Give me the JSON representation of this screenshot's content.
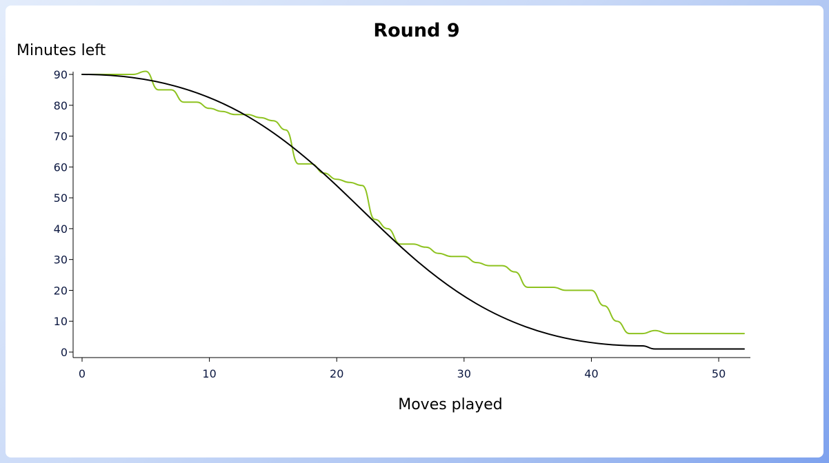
{
  "chart_data": {
    "type": "line",
    "title": "Round 9",
    "xlabel": "Moves played",
    "ylabel": "Minutes left",
    "xlim": [
      0,
      52
    ],
    "ylim": [
      0,
      90
    ],
    "x_ticks": [
      0,
      10,
      20,
      30,
      40,
      50
    ],
    "y_ticks": [
      0,
      10,
      20,
      30,
      40,
      50,
      60,
      70,
      80,
      90
    ],
    "grid": false,
    "legend": "none",
    "series": [
      {
        "color": "#8dc21f",
        "x": [
          0,
          4,
          5,
          6,
          7,
          8,
          9,
          10,
          11,
          12,
          13,
          14,
          15,
          16,
          17,
          18,
          19,
          20,
          21,
          22,
          23,
          24,
          25,
          26,
          27,
          28,
          29,
          30,
          31,
          32,
          33,
          34,
          35,
          36,
          37,
          38,
          39,
          40,
          41,
          42,
          43,
          44,
          45,
          46,
          47,
          48,
          49,
          50,
          51,
          52
        ],
        "y": [
          90,
          90,
          91,
          85,
          85,
          81,
          81,
          79,
          78,
          77,
          77,
          76,
          75,
          72,
          61,
          61,
          58,
          56,
          55,
          54,
          43,
          40,
          35,
          35,
          34,
          32,
          31,
          31,
          29,
          28,
          28,
          26,
          21,
          21,
          21,
          20,
          20,
          20,
          15,
          10,
          6,
          6,
          7,
          6,
          6,
          6,
          6,
          6,
          6,
          6
        ]
      },
      {
        "color": "#000000",
        "x": [
          0,
          44,
          45,
          52
        ],
        "y": [
          90,
          2,
          1,
          1
        ]
      }
    ]
  }
}
